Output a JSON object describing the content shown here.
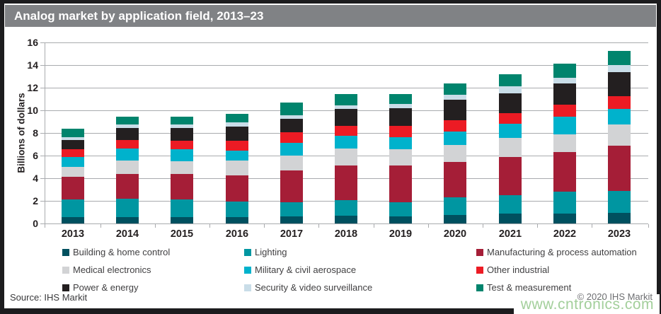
{
  "title": "Analog market by application field, 2013–23",
  "source": "Source: IHS Markit",
  "copyright": "© 2020 IHS Markit",
  "watermark": "www.cntronics.com",
  "colors": {
    "title_bar_bg": "#808285",
    "title_text": "#ffffff",
    "gridline": "#a9abae",
    "axis_text": "#231f20",
    "legend_text": "#414042",
    "copyright_text": "#6d6e71",
    "watermark_text": "#a3cf9b",
    "frame": "#1c1c1e"
  },
  "chart_data": {
    "type": "bar",
    "stacked": true,
    "title": "Analog market by application field, 2013–23",
    "xlabel": "",
    "ylabel": "Billions of dollars",
    "ylim": [
      0,
      16
    ],
    "yticks": [
      0,
      2,
      4,
      6,
      8,
      10,
      12,
      14,
      16
    ],
    "grid": true,
    "legend_position": "bottom",
    "categories": [
      "2013",
      "2014",
      "2015",
      "2016",
      "2017",
      "2018",
      "2019",
      "2020",
      "2021",
      "2022",
      "2023"
    ],
    "series": [
      {
        "name": "Building & home control",
        "color": "#00505f",
        "values": [
          0.55,
          0.55,
          0.55,
          0.55,
          0.6,
          0.7,
          0.65,
          0.75,
          0.85,
          0.9,
          0.95
        ]
      },
      {
        "name": "Lighting",
        "color": "#0096a1",
        "values": [
          1.55,
          1.65,
          1.6,
          1.4,
          1.25,
          1.35,
          1.25,
          1.55,
          1.65,
          1.9,
          1.9
        ]
      },
      {
        "name": "Manufacturing & process automation",
        "color": "#a51e37",
        "values": [
          2.0,
          2.2,
          2.25,
          2.3,
          2.85,
          3.1,
          3.25,
          3.15,
          3.35,
          3.5,
          4.05
        ]
      },
      {
        "name": "Medical electronics",
        "color": "#d2d3d5",
        "values": [
          0.9,
          1.15,
          1.1,
          1.3,
          1.3,
          1.5,
          1.4,
          1.5,
          1.7,
          1.6,
          1.85
        ]
      },
      {
        "name": "Military & civil aerospace",
        "color": "#00b2cc",
        "values": [
          0.85,
          1.05,
          1.05,
          0.9,
          1.1,
          1.1,
          1.05,
          1.2,
          1.25,
          1.55,
          1.4
        ]
      },
      {
        "name": "Other industrial",
        "color": "#ec1b24",
        "values": [
          0.7,
          0.75,
          0.75,
          0.85,
          0.95,
          0.85,
          1.0,
          0.95,
          0.95,
          1.05,
          1.1
        ]
      },
      {
        "name": "Power & energy",
        "color": "#231f20",
        "values": [
          0.85,
          1.1,
          1.15,
          1.25,
          1.2,
          1.55,
          1.6,
          1.85,
          1.75,
          1.85,
          2.15
        ]
      },
      {
        "name": "Security & video surveillance",
        "color": "#c9dde8",
        "values": [
          0.25,
          0.3,
          0.3,
          0.4,
          0.3,
          0.3,
          0.35,
          0.4,
          0.6,
          0.5,
          0.6
        ]
      },
      {
        "name": "Test & measurement",
        "color": "#00846d",
        "values": [
          0.75,
          0.7,
          0.7,
          0.75,
          1.15,
          1.0,
          0.9,
          1.0,
          1.1,
          1.25,
          1.25
        ]
      }
    ],
    "totals": [
      8.4,
      9.45,
      9.45,
      9.7,
      10.7,
      11.45,
      11.45,
      12.35,
      13.2,
      14.1,
      15.25
    ]
  }
}
